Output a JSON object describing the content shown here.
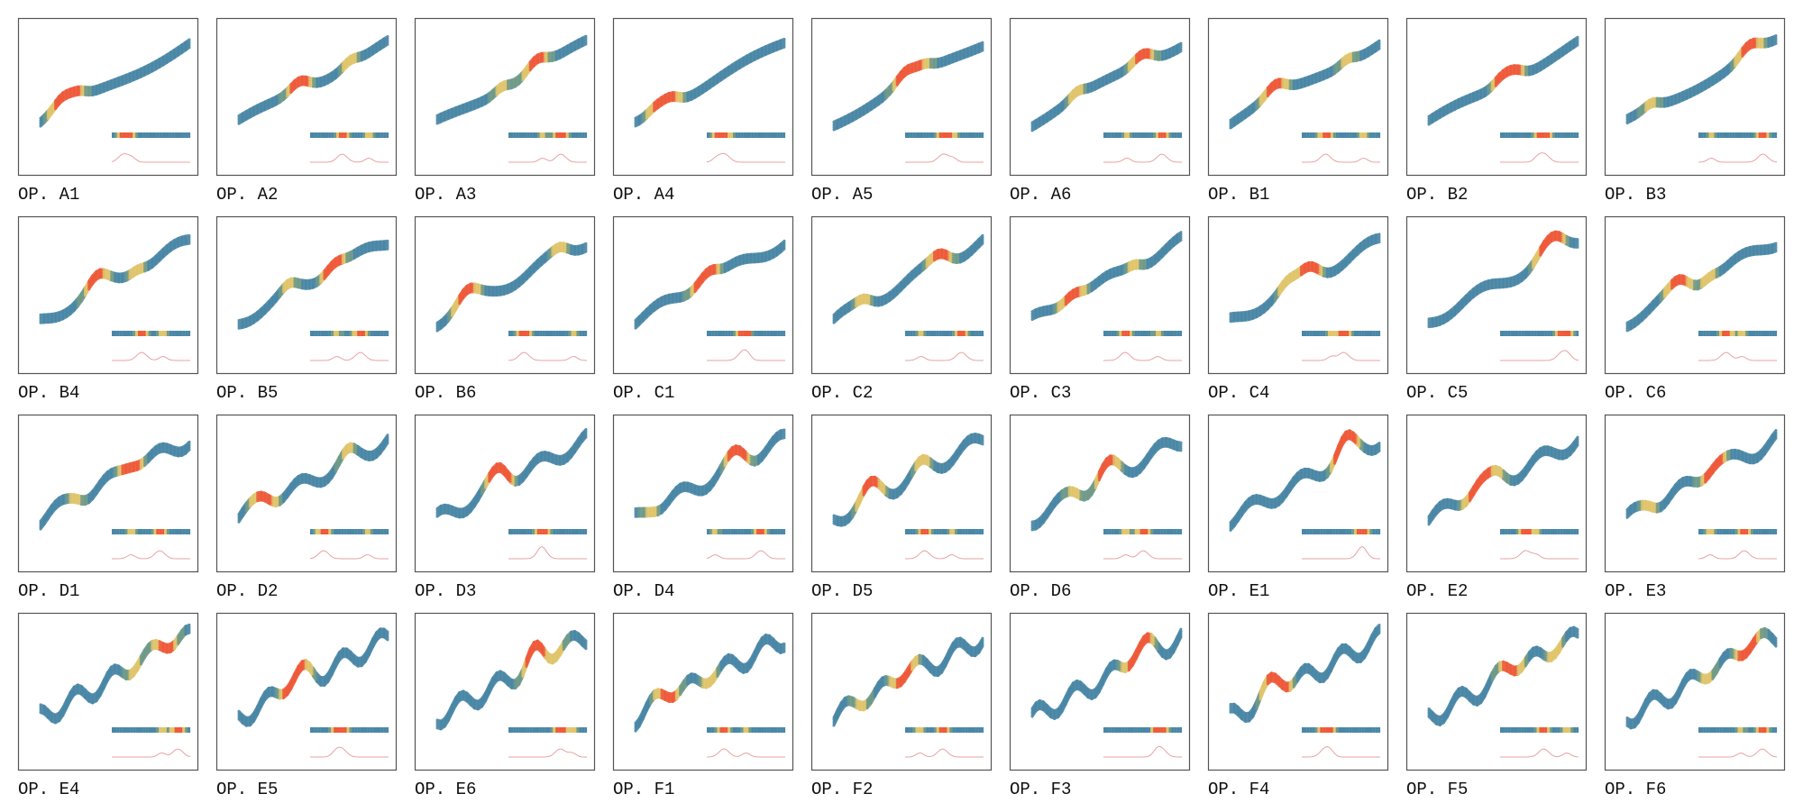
{
  "panels": [
    "OP. A1",
    "OP. A2",
    "OP. A3",
    "OP. A4",
    "OP. A5",
    "OP. A6",
    "OP. B1",
    "OP. B2",
    "OP. B3",
    "OP. B4",
    "OP. B5",
    "OP. B6",
    "OP. C1",
    "OP. C2",
    "OP. C3",
    "OP. C4",
    "OP. C5",
    "OP. C6",
    "OP. D1",
    "OP. D2",
    "OP. D3",
    "OP. D4",
    "OP. D5",
    "OP. D6",
    "OP. E1",
    "OP. E2",
    "OP. E3",
    "OP. E4",
    "OP. E5",
    "OP. E6",
    "OP. F1",
    "OP. F2",
    "OP. F3",
    "OP. F4",
    "OP. F5",
    "OP. F6"
  ]
}
